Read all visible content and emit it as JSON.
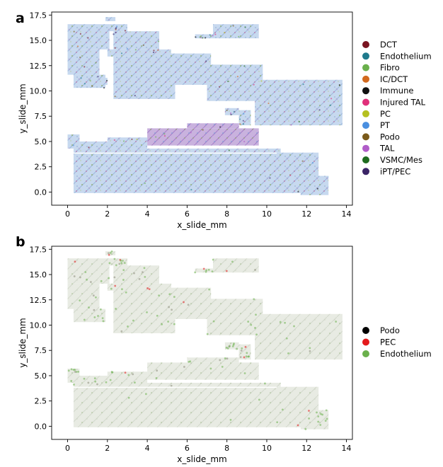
{
  "chart_data": [
    {
      "type": "scatter",
      "panel_label": "a",
      "xlabel": "x_slide_mm",
      "ylabel": "y_slide_mm",
      "xlim": [
        -0.8,
        14.3
      ],
      "ylim": [
        -1.3,
        17.8
      ],
      "xticks": [
        0,
        2,
        4,
        6,
        8,
        10,
        12,
        14
      ],
      "yticks": [
        0.0,
        2.5,
        5.0,
        7.5,
        10.0,
        12.5,
        15.0,
        17.5
      ],
      "ytick_labels": [
        "0.0",
        "2.5",
        "5.0",
        "7.5",
        "10.0",
        "12.5",
        "15.0",
        "17.5"
      ],
      "legend_position": "right",
      "series": [
        {
          "name": "DCT",
          "color": "#7a1420"
        },
        {
          "name": "Endothelium",
          "color": "#1f7a8c"
        },
        {
          "name": "Fibro",
          "color": "#6ab04c"
        },
        {
          "name": "IC/DCT",
          "color": "#d2691e"
        },
        {
          "name": "Immune",
          "color": "#111111"
        },
        {
          "name": "Injured TAL",
          "color": "#e0307a"
        },
        {
          "name": "PC",
          "color": "#b5c020"
        },
        {
          "name": "PT",
          "color": "#4a8fe0"
        },
        {
          "name": "Podo",
          "color": "#7a5a1a"
        },
        {
          "name": "TAL",
          "color": "#b05cc8"
        },
        {
          "name": "VSMC/Mes",
          "color": "#1e6b1e"
        },
        {
          "name": "iPT/PEC",
          "color": "#3a2466"
        }
      ],
      "regions": [
        {
          "x": [
            0.0,
            2.1
          ],
          "y": [
            14.1,
            16.6
          ],
          "tone": "mixed"
        },
        {
          "x": [
            2.1,
            3.0
          ],
          "y": [
            15.9,
            16.6
          ],
          "tone": "mixed"
        },
        {
          "x": [
            1.9,
            2.4
          ],
          "y": [
            16.9,
            17.3
          ],
          "tone": "mixed"
        },
        {
          "x": [
            2.0,
            5.2
          ],
          "y": [
            13.4,
            14.1
          ],
          "tone": "mixed"
        },
        {
          "x": [
            2.3,
            4.6
          ],
          "y": [
            14.1,
            15.9
          ],
          "tone": "mixed"
        },
        {
          "x": [
            0.0,
            1.6
          ],
          "y": [
            11.6,
            14.1
          ],
          "tone": "mixed"
        },
        {
          "x": [
            0.3,
            1.9
          ],
          "y": [
            10.3,
            11.6
          ],
          "tone": "mixed"
        },
        {
          "x": [
            1.7,
            2.0
          ],
          "y": [
            10.6,
            11.3
          ],
          "tone": "mixed"
        },
        {
          "x": [
            2.3,
            5.4
          ],
          "y": [
            9.2,
            13.4
          ],
          "tone": "mixed"
        },
        {
          "x": [
            4.0,
            7.2
          ],
          "y": [
            10.6,
            13.7
          ],
          "tone": "mixed"
        },
        {
          "x": [
            7.0,
            9.8
          ],
          "y": [
            9.0,
            12.6
          ],
          "tone": "mixed"
        },
        {
          "x": [
            9.4,
            13.8
          ],
          "y": [
            6.6,
            11.1
          ],
          "tone": "mixed"
        },
        {
          "x": [
            7.3,
            9.6
          ],
          "y": [
            15.2,
            16.6
          ],
          "tone": "mixed"
        },
        {
          "x": [
            6.4,
            7.3
          ],
          "y": [
            15.2,
            15.6
          ],
          "tone": "mixed"
        },
        {
          "x": [
            7.9,
            8.6
          ],
          "y": [
            7.6,
            8.3
          ],
          "tone": "mixed"
        },
        {
          "x": [
            8.6,
            9.2
          ],
          "y": [
            6.6,
            8.1
          ],
          "tone": "mixed"
        },
        {
          "x": [
            4.0,
            9.6
          ],
          "y": [
            4.6,
            6.3
          ],
          "tone": "purple"
        },
        {
          "x": [
            6.0,
            8.6
          ],
          "y": [
            6.3,
            6.8
          ],
          "tone": "purple"
        },
        {
          "x": [
            0.0,
            0.6
          ],
          "y": [
            4.3,
            5.7
          ],
          "tone": "mixed"
        },
        {
          "x": [
            0.6,
            4.0
          ],
          "y": [
            4.3,
            5.0
          ],
          "tone": "mixed"
        },
        {
          "x": [
            2.0,
            4.0
          ],
          "y": [
            5.0,
            5.4
          ],
          "tone": "mixed"
        },
        {
          "x": [
            0.3,
            10.7
          ],
          "y": [
            3.9,
            4.3
          ],
          "tone": "mixed"
        },
        {
          "x": [
            0.3,
            10.7
          ],
          "y": [
            -0.1,
            3.8
          ],
          "tone": "mixed"
        },
        {
          "x": [
            10.5,
            12.6
          ],
          "y": [
            -0.1,
            3.9
          ],
          "tone": "mixed"
        },
        {
          "x": [
            11.7,
            13.1
          ],
          "y": [
            -0.3,
            1.6
          ],
          "tone": "mixed"
        }
      ]
    },
    {
      "type": "scatter",
      "panel_label": "b",
      "xlabel": "x_slide_mm",
      "ylabel": "y_slide_mm",
      "xlim": [
        -0.8,
        14.3
      ],
      "ylim": [
        -1.3,
        17.8
      ],
      "xticks": [
        0,
        2,
        4,
        6,
        8,
        10,
        12,
        14
      ],
      "yticks": [
        0.0,
        2.5,
        5.0,
        7.5,
        10.0,
        12.5,
        15.0,
        17.5
      ],
      "ytick_labels": [
        "0.0",
        "2.5",
        "5.0",
        "7.5",
        "10.0",
        "12.5",
        "15.0",
        "17.5"
      ],
      "legend_position": "right",
      "series": [
        {
          "name": "Podo",
          "color": "#000000"
        },
        {
          "name": "PEC",
          "color": "#e41a1c"
        },
        {
          "name": "Endothelium",
          "color": "#6ab04c"
        }
      ],
      "regions": [
        {
          "x": [
            0.0,
            2.1
          ],
          "y": [
            14.1,
            16.6
          ],
          "tone": "pale"
        },
        {
          "x": [
            2.1,
            3.0
          ],
          "y": [
            15.9,
            16.6
          ],
          "tone": "pale"
        },
        {
          "x": [
            1.9,
            2.4
          ],
          "y": [
            16.9,
            17.3
          ],
          "tone": "pale"
        },
        {
          "x": [
            2.0,
            5.2
          ],
          "y": [
            13.4,
            14.1
          ],
          "tone": "pale"
        },
        {
          "x": [
            2.3,
            4.6
          ],
          "y": [
            14.1,
            15.9
          ],
          "tone": "pale"
        },
        {
          "x": [
            0.0,
            1.6
          ],
          "y": [
            11.6,
            14.1
          ],
          "tone": "pale"
        },
        {
          "x": [
            0.3,
            1.9
          ],
          "y": [
            10.3,
            11.6
          ],
          "tone": "pale"
        },
        {
          "x": [
            2.3,
            5.4
          ],
          "y": [
            9.2,
            13.4
          ],
          "tone": "pale"
        },
        {
          "x": [
            4.0,
            7.2
          ],
          "y": [
            10.6,
            13.7
          ],
          "tone": "pale"
        },
        {
          "x": [
            7.0,
            9.8
          ],
          "y": [
            9.0,
            12.6
          ],
          "tone": "pale"
        },
        {
          "x": [
            9.4,
            13.8
          ],
          "y": [
            6.6,
            11.1
          ],
          "tone": "pale"
        },
        {
          "x": [
            7.3,
            9.6
          ],
          "y": [
            15.2,
            16.6
          ],
          "tone": "pale"
        },
        {
          "x": [
            6.4,
            7.3
          ],
          "y": [
            15.2,
            15.6
          ],
          "tone": "pale"
        },
        {
          "x": [
            7.9,
            8.6
          ],
          "y": [
            7.6,
            8.3
          ],
          "tone": "pale"
        },
        {
          "x": [
            8.6,
            9.2
          ],
          "y": [
            6.6,
            8.1
          ],
          "tone": "pale"
        },
        {
          "x": [
            4.0,
            9.6
          ],
          "y": [
            4.6,
            6.3
          ],
          "tone": "pale"
        },
        {
          "x": [
            6.0,
            8.6
          ],
          "y": [
            6.3,
            6.8
          ],
          "tone": "pale"
        },
        {
          "x": [
            0.0,
            0.6
          ],
          "y": [
            4.3,
            5.7
          ],
          "tone": "pale"
        },
        {
          "x": [
            0.6,
            4.0
          ],
          "y": [
            4.3,
            5.0
          ],
          "tone": "pale"
        },
        {
          "x": [
            2.0,
            4.0
          ],
          "y": [
            5.0,
            5.4
          ],
          "tone": "pale"
        },
        {
          "x": [
            0.3,
            10.7
          ],
          "y": [
            3.9,
            4.3
          ],
          "tone": "pale"
        },
        {
          "x": [
            0.3,
            10.7
          ],
          "y": [
            -0.1,
            3.8
          ],
          "tone": "pale"
        },
        {
          "x": [
            10.5,
            12.6
          ],
          "y": [
            -0.1,
            3.9
          ],
          "tone": "pale"
        },
        {
          "x": [
            11.7,
            13.1
          ],
          "y": [
            -0.3,
            1.6
          ],
          "tone": "pale"
        }
      ]
    }
  ]
}
